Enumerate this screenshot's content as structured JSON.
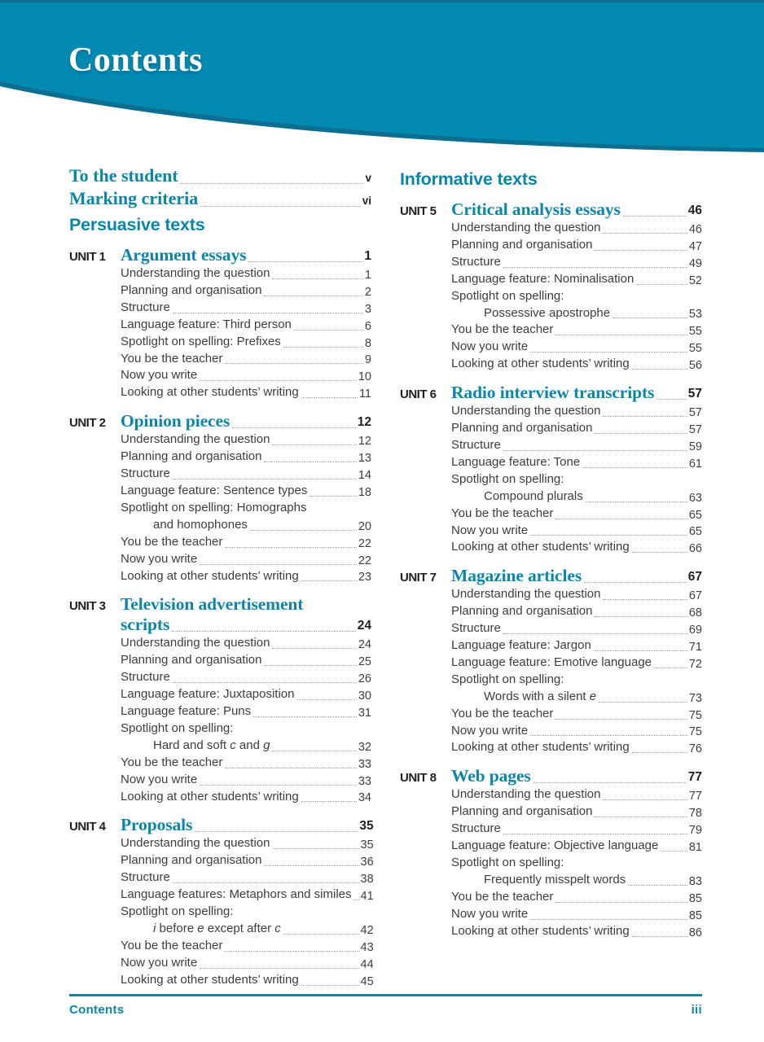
{
  "header": {
    "title": "Contents"
  },
  "colors": {
    "teal": "#0b85ab",
    "teal_header": "#028ab1",
    "teal_header_dark": "#0e6e90",
    "text_dark": "#3d3d3c",
    "label_dark": "#231f20"
  },
  "columns": [
    {
      "front_items": [
        {
          "text": "To the student",
          "page": "v"
        },
        {
          "text": "Marking criteria",
          "page": "vi"
        }
      ],
      "sections": [
        {
          "heading": "Persuasive texts",
          "units": [
            {
              "label": "UNIT 1",
              "title_lines": [
                "Argument essays"
              ],
              "page": "1",
              "entries": [
                {
                  "text": "Understanding the question",
                  "page": "1"
                },
                {
                  "text": "Planning and organisation",
                  "page": "2"
                },
                {
                  "text": "Structure",
                  "page": "3"
                },
                {
                  "text": "Language feature: Third person",
                  "page": "6"
                },
                {
                  "text": "Spotlight on spelling: Prefixes",
                  "page": "8"
                },
                {
                  "text": "You be the teacher",
                  "page": "9"
                },
                {
                  "text": "Now you write",
                  "page": "10"
                },
                {
                  "text": "Looking at other students’ writing",
                  "page": "11"
                }
              ]
            },
            {
              "label": "UNIT 2",
              "title_lines": [
                "Opinion pieces"
              ],
              "page": "12",
              "entries": [
                {
                  "text": "Understanding the question",
                  "page": "12"
                },
                {
                  "text": "Planning and organisation",
                  "page": "13"
                },
                {
                  "text": "Structure",
                  "page": "14"
                },
                {
                  "text": "Language feature: Sentence types",
                  "page": "18"
                },
                {
                  "text": "Spotlight on spelling: Homographs",
                  "page": null
                },
                {
                  "text": "and homophones",
                  "page": "20",
                  "indent": 1
                },
                {
                  "text": "You be the teacher",
                  "page": "22"
                },
                {
                  "text": "Now you write",
                  "page": "22"
                },
                {
                  "text": "Looking at other students’ writing",
                  "page": "23"
                }
              ]
            },
            {
              "label": "UNIT 3",
              "title_lines": [
                "Television advertisement",
                "scripts"
              ],
              "page": "24",
              "entries": [
                {
                  "text": "Understanding the question",
                  "page": "24"
                },
                {
                  "text": "Planning and organisation",
                  "page": "25"
                },
                {
                  "text": "Structure",
                  "page": "26"
                },
                {
                  "text": "Language feature: Juxtaposition",
                  "page": "30"
                },
                {
                  "text": "Language feature: Puns",
                  "page": "31"
                },
                {
                  "text": "Spotlight on spelling:",
                  "page": null
                },
                {
                  "segs": [
                    {
                      "t": "Hard and soft "
                    },
                    {
                      "t": "c",
                      "i": true
                    },
                    {
                      "t": " and "
                    },
                    {
                      "t": "g",
                      "i": true
                    }
                  ],
                  "page": "32",
                  "indent": 1
                },
                {
                  "text": "You be the teacher",
                  "page": "33"
                },
                {
                  "text": "Now you write",
                  "page": "33"
                },
                {
                  "text": "Looking at other students’ writing",
                  "page": "34"
                }
              ]
            },
            {
              "label": "UNIT 4",
              "title_lines": [
                "Proposals"
              ],
              "page": "35",
              "entries": [
                {
                  "text": "Understanding the question",
                  "page": "35"
                },
                {
                  "text": "Planning and organisation",
                  "page": "36"
                },
                {
                  "text": "Structure",
                  "page": "38"
                },
                {
                  "text": "Language features: Metaphors and similes",
                  "page": "41"
                },
                {
                  "text": "Spotlight on spelling:",
                  "page": null
                },
                {
                  "segs": [
                    {
                      "t": "i",
                      "i": true
                    },
                    {
                      "t": " before "
                    },
                    {
                      "t": "e",
                      "i": true
                    },
                    {
                      "t": " except after "
                    },
                    {
                      "t": "c",
                      "i": true
                    }
                  ],
                  "page": "42",
                  "indent": 1
                },
                {
                  "text": "You be the teacher",
                  "page": "43"
                },
                {
                  "text": "Now you write",
                  "page": "44"
                },
                {
                  "text": "Looking at other students’ writing",
                  "page": "45"
                }
              ]
            }
          ]
        }
      ]
    },
    {
      "front_items": [],
      "sections": [
        {
          "heading": "Informative texts",
          "units": [
            {
              "label": "UNIT 5",
              "title_lines": [
                "Critical analysis essays"
              ],
              "page": "46",
              "entries": [
                {
                  "text": "Understanding the question",
                  "page": "46"
                },
                {
                  "text": "Planning and organisation",
                  "page": "47"
                },
                {
                  "text": "Structure",
                  "page": "49"
                },
                {
                  "text": "Language feature: Nominalisation",
                  "page": "52"
                },
                {
                  "text": "Spotlight on spelling:",
                  "page": null
                },
                {
                  "text": "Possessive apostrophe",
                  "page": "53",
                  "indent": 1
                },
                {
                  "text": "You be the teacher",
                  "page": "55"
                },
                {
                  "text": "Now you write",
                  "page": "55"
                },
                {
                  "text": "Looking at other students’ writing",
                  "page": "56"
                }
              ]
            },
            {
              "label": "UNIT 6",
              "title_lines": [
                "Radio interview transcripts"
              ],
              "page": "57",
              "entries": [
                {
                  "text": "Understanding the question",
                  "page": "57"
                },
                {
                  "text": "Planning and organisation",
                  "page": "57"
                },
                {
                  "text": "Structure",
                  "page": "59"
                },
                {
                  "text": "Language feature: Tone",
                  "page": "61"
                },
                {
                  "text": "Spotlight on spelling:",
                  "page": null
                },
                {
                  "text": "Compound plurals",
                  "page": "63",
                  "indent": 1
                },
                {
                  "text": "You be the teacher",
                  "page": "65"
                },
                {
                  "text": "Now you write",
                  "page": "65"
                },
                {
                  "text": "Looking at other students’ writing",
                  "page": "66"
                }
              ]
            },
            {
              "label": "UNIT 7",
              "title_lines": [
                "Magazine articles"
              ],
              "page": "67",
              "entries": [
                {
                  "text": "Understanding the question",
                  "page": "67"
                },
                {
                  "text": "Planning and organisation",
                  "page": "68"
                },
                {
                  "text": "Structure",
                  "page": "69"
                },
                {
                  "text": "Language feature: Jargon",
                  "page": "71"
                },
                {
                  "text": "Language feature: Emotive language",
                  "page": "72"
                },
                {
                  "text": "Spotlight on spelling:",
                  "page": null
                },
                {
                  "segs": [
                    {
                      "t": "Words with a silent "
                    },
                    {
                      "t": "e",
                      "i": true
                    }
                  ],
                  "page": "73",
                  "indent": 1
                },
                {
                  "text": "You be the teacher",
                  "page": "75"
                },
                {
                  "text": "Now you write",
                  "page": "75"
                },
                {
                  "text": "Looking at other students’ writing",
                  "page": "76"
                }
              ]
            },
            {
              "label": "UNIT 8",
              "title_lines": [
                "Web pages"
              ],
              "page": "77",
              "entries": [
                {
                  "text": "Understanding the question",
                  "page": "77"
                },
                {
                  "text": "Planning and organisation",
                  "page": "78"
                },
                {
                  "text": "Structure",
                  "page": "79"
                },
                {
                  "text": "Language feature: Objective language",
                  "page": "81"
                },
                {
                  "text": "Spotlight on spelling:",
                  "page": null
                },
                {
                  "text": "Frequently misspelt words",
                  "page": "83",
                  "indent": 1
                },
                {
                  "text": "You be the teacher",
                  "page": "85"
                },
                {
                  "text": "Now you write",
                  "page": "85"
                },
                {
                  "text": "Looking at other students’ writing",
                  "page": "86"
                }
              ]
            }
          ]
        }
      ]
    }
  ],
  "footer": {
    "left": "Contents",
    "page": "iii"
  }
}
